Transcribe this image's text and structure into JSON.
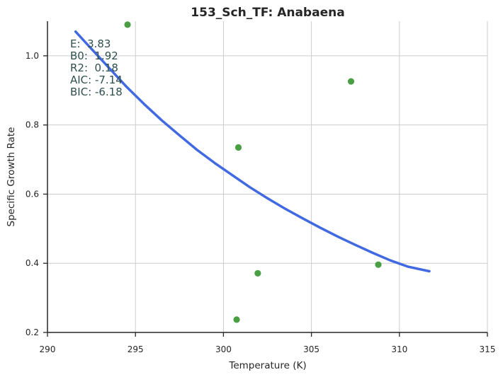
{
  "chart_data": {
    "type": "scatter",
    "title": "153_Sch_TF: Anabaena",
    "xlabel": "Temperature (K)",
    "ylabel": "Specific Growth Rate",
    "xlim": [
      290,
      315
    ],
    "ylim": [
      0.2,
      1.1
    ],
    "xticks": [
      "290",
      "295",
      "300",
      "305",
      "310",
      "315"
    ],
    "xtick_values": [
      290,
      295,
      300,
      305,
      310,
      315
    ],
    "yticks": [
      "0.2",
      "0.4",
      "0.6",
      "0.8",
      "1.0"
    ],
    "ytick_values": [
      0.2,
      0.4,
      0.6,
      0.8,
      1.0
    ],
    "grid": true,
    "points": {
      "color": "#4a9f45",
      "x": [
        294.55,
        300.75,
        300.85,
        301.95,
        307.25,
        308.8
      ],
      "y": [
        1.09,
        0.237,
        0.735,
        0.371,
        0.926,
        0.396
      ]
    },
    "fit": {
      "color": "#4169e1",
      "x": [
        291.6,
        292.5,
        293.5,
        294.5,
        295.5,
        296.5,
        297.5,
        298.5,
        299.5,
        300.5,
        301.5,
        302.5,
        303.5,
        304.5,
        305.5,
        306.5,
        307.5,
        308.5,
        309.5,
        310.5,
        311.7
      ],
      "y": [
        1.07,
        1.02,
        0.965,
        0.91,
        0.86,
        0.813,
        0.77,
        0.728,
        0.69,
        0.655,
        0.62,
        0.588,
        0.558,
        0.53,
        0.503,
        0.477,
        0.453,
        0.43,
        0.408,
        0.39,
        0.377
      ]
    },
    "annotations": [
      "E:  3.83",
      "B0:  1.92",
      "R2:  0.18",
      "AIC: -7.14",
      "BIC: -6.18"
    ]
  }
}
